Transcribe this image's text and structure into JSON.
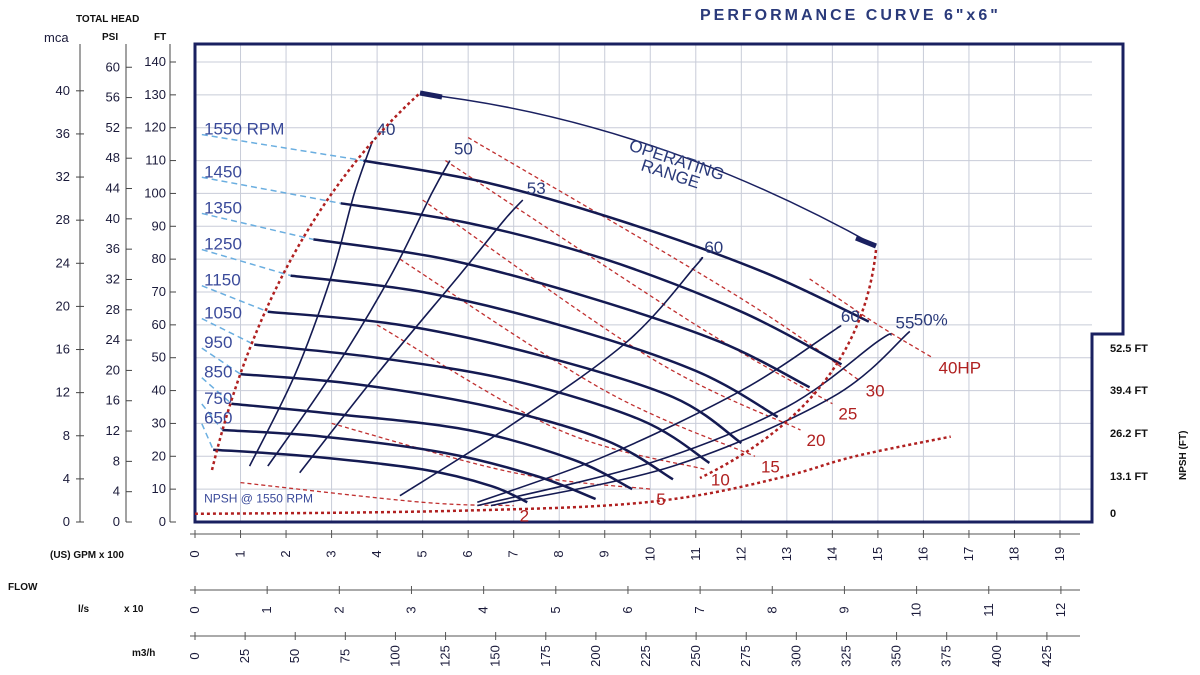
{
  "title": "PERFORMANCE CURVE  6\"x6\"",
  "chart_data": {
    "type": "line",
    "title": "PERFORMANCE CURVE 6\"x6\"",
    "xlabel": "(US) GPM x 100",
    "ylabel": "TOTAL HEAD",
    "xlim": [
      0,
      19
    ],
    "ylim": [
      0,
      140
    ],
    "total_head_label": "TOTAL HEAD",
    "flow_label": "FLOW",
    "y_axes": {
      "ft": {
        "label": "FT",
        "ticks": [
          0,
          10,
          20,
          30,
          40,
          50,
          60,
          70,
          80,
          90,
          100,
          110,
          120,
          130,
          140
        ]
      },
      "psi": {
        "label": "PSI",
        "ticks": [
          0,
          4,
          8,
          12,
          16,
          20,
          24,
          28,
          32,
          36,
          40,
          44,
          48,
          52,
          56,
          60
        ]
      },
      "mca": {
        "label": "mca",
        "ticks": [
          0,
          4,
          8,
          12,
          16,
          20,
          24,
          28,
          32,
          36,
          40
        ]
      }
    },
    "x_axes": {
      "gpm": {
        "label": "(US) GPM  x 100",
        "ticks": [
          0,
          1,
          2,
          3,
          4,
          5,
          6,
          7,
          8,
          9,
          10,
          11,
          12,
          13,
          14,
          15,
          16,
          17,
          18,
          19
        ]
      },
      "ls": {
        "label": "l/s",
        "mult": "x 10",
        "ticks": [
          0,
          1,
          2,
          3,
          4,
          5,
          6,
          7,
          8,
          9,
          10,
          11,
          12
        ]
      },
      "m3h": {
        "label": "m3/h",
        "ticks": [
          0,
          25,
          50,
          75,
          100,
          125,
          150,
          175,
          200,
          225,
          250,
          275,
          300,
          325,
          350,
          375,
          400,
          425
        ]
      }
    },
    "npsh_axis": {
      "label": "NPSH (FT)",
      "ticks": [
        "52.5 FT",
        "39.4 FT",
        "26.2 FT",
        "13.1 FT",
        "0"
      ]
    },
    "npsh_curve_label": "NPSH @ 1550 RPM",
    "npsh_curve": {
      "x": [
        0,
        3,
        6,
        9,
        11,
        13,
        14.5,
        16.6
      ],
      "y": [
        2.5,
        2.8,
        3.5,
        5,
        8,
        14,
        20,
        26
      ]
    },
    "series": [
      {
        "name": "1550 RPM",
        "x": [
          3.7,
          6.5,
          9.5,
          12.5,
          14.8
        ],
        "y": [
          110,
          103,
          91,
          76,
          61
        ]
      },
      {
        "name": "1450",
        "x": [
          3.2,
          6,
          9,
          12,
          14.2
        ],
        "y": [
          97,
          91,
          80,
          64,
          48
        ]
      },
      {
        "name": "1350",
        "x": [
          2.6,
          5.5,
          8.5,
          11.5,
          13.5
        ],
        "y": [
          86,
          80,
          69,
          55,
          41
        ]
      },
      {
        "name": "1250",
        "x": [
          2.1,
          5,
          8,
          11,
          12.8
        ],
        "y": [
          75,
          70,
          60,
          46,
          32
        ]
      },
      {
        "name": "1150",
        "x": [
          1.6,
          4.5,
          7.5,
          10.5,
          12
        ],
        "y": [
          64,
          60,
          51,
          38,
          24
        ]
      },
      {
        "name": "1050",
        "x": [
          1.3,
          4,
          7,
          9.8,
          11.3
        ],
        "y": [
          54,
          50,
          43,
          31,
          18
        ]
      },
      {
        "name": "950",
        "x": [
          1,
          3.5,
          6.5,
          9,
          10.5
        ],
        "y": [
          45,
          42,
          35,
          25,
          13
        ]
      },
      {
        "name": "850",
        "x": [
          0.8,
          3,
          6,
          8.3,
          9.6
        ],
        "y": [
          36,
          33,
          28,
          19,
          10
        ]
      },
      {
        "name": "750",
        "x": [
          0.6,
          2.8,
          5.5,
          7.5,
          8.8
        ],
        "y": [
          28,
          26,
          21,
          14,
          7
        ]
      },
      {
        "name": "650",
        "x": [
          0.4,
          2.5,
          5,
          6.5,
          7.3
        ],
        "y": [
          22,
          20,
          16,
          11,
          6
        ]
      }
    ],
    "efficiency_curves": [
      {
        "label": "40",
        "x": [
          1.2,
          2.2,
          3,
          3.5,
          3.9
        ],
        "y": [
          17,
          45,
          75,
          100,
          116
        ]
      },
      {
        "label": "50",
        "x": [
          1.6,
          3,
          4.3,
          5.2,
          5.6
        ],
        "y": [
          17,
          45,
          75,
          100,
          110
        ]
      },
      {
        "label": "53",
        "x": [
          2.3,
          4,
          5.8,
          6.8,
          7.2
        ],
        "y": [
          15,
          45,
          75,
          92,
          98
        ]
      },
      {
        "label": "60",
        "x": [
          4.5,
          7,
          9.5,
          11,
          11.1
        ],
        "y": [
          8,
          30,
          55,
          78,
          80
        ]
      },
      {
        "label": "60",
        "x": [
          6.2,
          9,
          12,
          14,
          14.1
        ],
        "y": [
          6,
          20,
          40,
          58,
          59
        ]
      },
      {
        "label": "55",
        "x": [
          6.2,
          10,
          13,
          15,
          15.3
        ],
        "y": [
          5,
          18,
          35,
          55,
          57
        ]
      },
      {
        "label": "50%",
        "x": [
          6.5,
          10.5,
          14,
          15.7
        ],
        "y": [
          5,
          17,
          38,
          58
        ]
      }
    ],
    "hp_curves": [
      {
        "label": "2",
        "x": [
          1,
          5,
          7
        ],
        "y": [
          12,
          6,
          5
        ]
      },
      {
        "label": "5",
        "x": [
          3,
          7,
          10
        ],
        "y": [
          30,
          15,
          10
        ]
      },
      {
        "label": "10",
        "x": [
          4,
          8,
          11.2
        ],
        "y": [
          60,
          28,
          16
        ]
      },
      {
        "label": "15",
        "x": [
          4.5,
          9,
          12.3
        ],
        "y": [
          80,
          40,
          20
        ]
      },
      {
        "label": "20",
        "x": [
          5,
          10,
          13.3
        ],
        "y": [
          98,
          50,
          28
        ]
      },
      {
        "label": "25",
        "x": [
          5.5,
          11,
          14
        ],
        "y": [
          110,
          60,
          36
        ]
      },
      {
        "label": "30",
        "x": [
          6,
          12,
          14.6
        ],
        "y": [
          117,
          68,
          43
        ]
      },
      {
        "label": "40HP",
        "x": [
          13.5,
          15,
          16.2
        ],
        "y": [
          74,
          60,
          50
        ]
      }
    ],
    "operating_range_label": "OPERATING RANGE",
    "operating_range_label_1": "OPERATING",
    "operating_range_label_2": "RANGE"
  }
}
